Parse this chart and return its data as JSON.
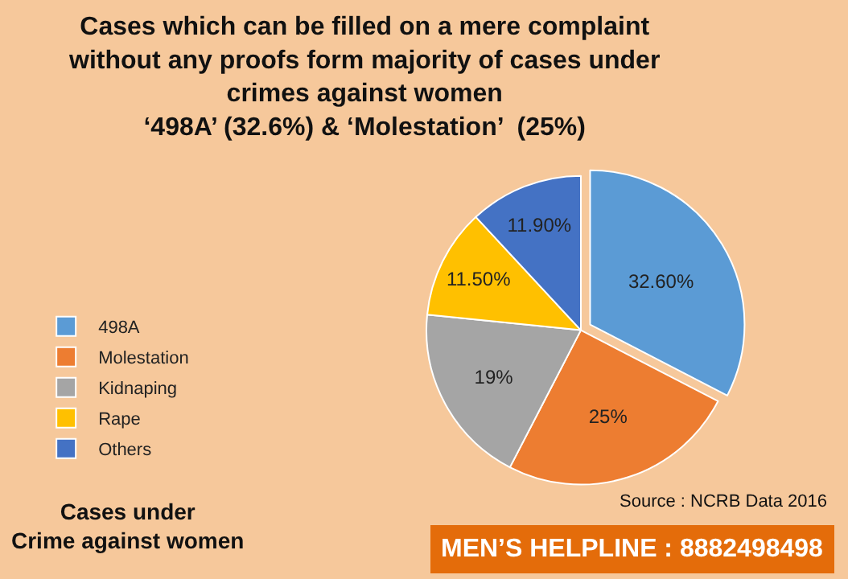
{
  "chart_data": {
    "type": "pie",
    "title": "Cases which can be filled on a mere complaint\nwithout any proofs form majority of cases under\ncrimes against women",
    "subtitle": "‘498A’ (32.6%) & ‘Molestation’  (25%)",
    "categories": [
      "498A",
      "Molestation",
      "Kidnaping",
      "Rape",
      "Others"
    ],
    "values": [
      32.6,
      25,
      19,
      11.5,
      11.9
    ],
    "value_labels": [
      "32.60%",
      "25%",
      "19%",
      "11.50%",
      "11.90%"
    ],
    "colors": [
      "#5b9bd5",
      "#ed7d31",
      "#a5a5a5",
      "#ffc000",
      "#4472c4"
    ],
    "legend": "left",
    "annotations": [
      "Cases under\nCrime against women",
      "Source : NCRB Data 2016",
      "MEN’S HELPLINE : 8882498498"
    ]
  }
}
